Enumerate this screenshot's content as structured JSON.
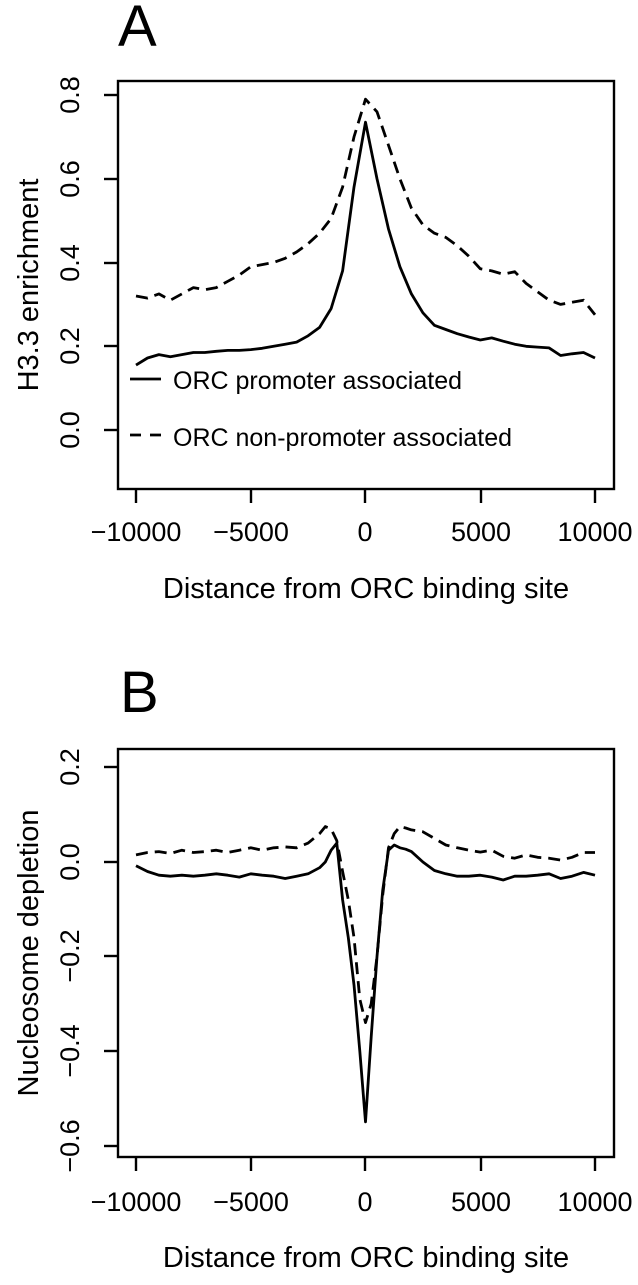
{
  "figure": {
    "background": "#ffffff",
    "line_color": "#000000",
    "panels": [
      {
        "panel_label": "A",
        "xlabel": "Distance from ORC binding site",
        "ylabel": "H3.3 enrichment",
        "x_tick_labels": [
          "−10000",
          "−5000",
          "0",
          "5000",
          "10000"
        ],
        "y_tick_labels": [
          "0.0",
          "0.2",
          "0.4",
          "0.6",
          "0.8"
        ],
        "legend": [
          {
            "style": "solid",
            "label": "ORC promoter associated"
          },
          {
            "style": "dashed",
            "label": "ORC non-promoter associated"
          }
        ]
      },
      {
        "panel_label": "B",
        "xlabel": "Distance from ORC binding site",
        "ylabel": "Nucleosome depletion",
        "x_tick_labels": [
          "−10000",
          "−5000",
          "0",
          "5000",
          "10000"
        ],
        "y_tick_labels": [
          "0.2",
          "0.0",
          "−0.2",
          "−0.4",
          "−0.6"
        ]
      }
    ]
  },
  "chart_data": [
    {
      "type": "line",
      "panel": "A",
      "title": "",
      "xlabel": "Distance from ORC binding site",
      "ylabel": "H3.3 enrichment",
      "xlim": [
        -10800,
        10800
      ],
      "ylim": [
        0.0,
        0.8
      ],
      "x_ticks": [
        -10000,
        -5000,
        0,
        5000,
        10000
      ],
      "y_ticks": [
        0.0,
        0.2,
        0.4,
        0.6,
        0.8
      ],
      "grid": false,
      "legend_position": "inside-bottom-left",
      "x": [
        -10000,
        -9500,
        -9000,
        -8500,
        -8000,
        -7500,
        -7000,
        -6500,
        -6000,
        -5500,
        -5000,
        -4500,
        -4000,
        -3500,
        -3000,
        -2500,
        -2000,
        -1500,
        -1000,
        -500,
        0,
        500,
        1000,
        1500,
        2000,
        2500,
        3000,
        3500,
        4000,
        4500,
        5000,
        5500,
        6000,
        6500,
        7000,
        7500,
        8000,
        8500,
        9000,
        9500,
        10000
      ],
      "series": [
        {
          "name": "ORC promoter associated",
          "line_style": "solid",
          "color": "#000000",
          "values": [
            0.155,
            0.172,
            0.18,
            0.175,
            0.18,
            0.185,
            0.185,
            0.188,
            0.19,
            0.19,
            0.192,
            0.195,
            0.2,
            0.205,
            0.21,
            0.225,
            0.245,
            0.29,
            0.38,
            0.58,
            0.735,
            0.6,
            0.48,
            0.39,
            0.325,
            0.28,
            0.25,
            0.24,
            0.23,
            0.222,
            0.215,
            0.22,
            0.212,
            0.205,
            0.2,
            0.198,
            0.196,
            0.178,
            0.182,
            0.185,
            0.172
          ]
        },
        {
          "name": "ORC non-promoter associated",
          "line_style": "dashed",
          "color": "#000000",
          "values": [
            0.32,
            0.315,
            0.325,
            0.31,
            0.325,
            0.34,
            0.335,
            0.34,
            0.355,
            0.37,
            0.39,
            0.395,
            0.4,
            0.41,
            0.425,
            0.445,
            0.47,
            0.505,
            0.58,
            0.7,
            0.79,
            0.76,
            0.68,
            0.6,
            0.53,
            0.49,
            0.47,
            0.46,
            0.44,
            0.415,
            0.385,
            0.38,
            0.372,
            0.378,
            0.35,
            0.33,
            0.31,
            0.3,
            0.305,
            0.31,
            0.275
          ]
        }
      ]
    },
    {
      "type": "line",
      "panel": "B",
      "title": "",
      "xlabel": "Distance from ORC binding site",
      "ylabel": "Nucleosome depletion",
      "xlim": [
        -10800,
        10800
      ],
      "ylim": [
        -0.6,
        0.2
      ],
      "x_ticks": [
        -10000,
        -5000,
        0,
        5000,
        10000
      ],
      "y_ticks": [
        0.2,
        0.0,
        -0.2,
        -0.4,
        -0.6
      ],
      "grid": false,
      "legend_position": "none",
      "x": [
        -10000,
        -9500,
        -9000,
        -8500,
        -8000,
        -7500,
        -7000,
        -6500,
        -6000,
        -5500,
        -5000,
        -4500,
        -4000,
        -3500,
        -3000,
        -2500,
        -2000,
        -1750,
        -1500,
        -1250,
        -1000,
        -750,
        -500,
        -250,
        0,
        250,
        500,
        750,
        1000,
        1250,
        1500,
        1750,
        2000,
        2500,
        3000,
        3500,
        4000,
        4500,
        5000,
        5500,
        6000,
        6500,
        7000,
        7500,
        8000,
        8500,
        9000,
        9500,
        10000
      ],
      "series": [
        {
          "name": "ORC promoter associated",
          "line_style": "solid",
          "color": "#000000",
          "values": [
            -0.008,
            -0.02,
            -0.028,
            -0.03,
            -0.028,
            -0.03,
            -0.028,
            -0.025,
            -0.028,
            -0.032,
            -0.025,
            -0.028,
            -0.03,
            -0.035,
            -0.03,
            -0.025,
            -0.012,
            0.0,
            0.025,
            0.04,
            -0.08,
            -0.16,
            -0.26,
            -0.4,
            -0.55,
            -0.37,
            -0.2,
            -0.06,
            0.025,
            0.036,
            0.03,
            0.027,
            0.022,
            0.0,
            -0.018,
            -0.025,
            -0.03,
            -0.03,
            -0.028,
            -0.032,
            -0.038,
            -0.03,
            -0.03,
            -0.028,
            -0.025,
            -0.035,
            -0.03,
            -0.022,
            -0.028
          ]
        },
        {
          "name": "ORC non-promoter associated",
          "line_style": "dashed",
          "color": "#000000",
          "values": [
            0.015,
            0.02,
            0.022,
            0.018,
            0.025,
            0.02,
            0.022,
            0.025,
            0.02,
            0.025,
            0.03,
            0.025,
            0.03,
            0.032,
            0.03,
            0.04,
            0.06,
            0.075,
            0.07,
            0.045,
            -0.02,
            -0.08,
            -0.16,
            -0.29,
            -0.34,
            -0.3,
            -0.2,
            -0.07,
            0.03,
            0.06,
            0.075,
            0.072,
            0.068,
            0.064,
            0.05,
            0.036,
            0.03,
            0.025,
            0.021,
            0.025,
            0.012,
            0.008,
            0.015,
            0.01,
            0.008,
            0.004,
            0.01,
            0.02,
            0.02
          ]
        }
      ]
    }
  ]
}
